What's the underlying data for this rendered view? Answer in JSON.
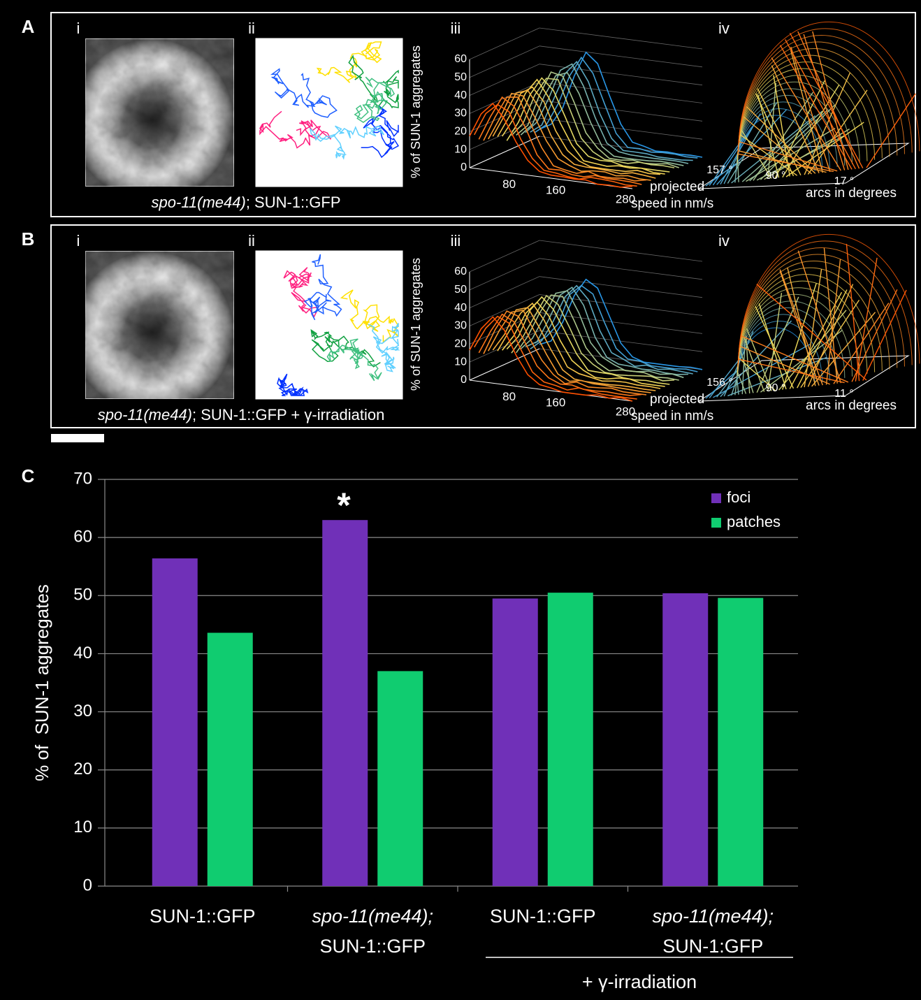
{
  "panels": [
    {
      "label": "A",
      "sublabels": [
        "i",
        "ii",
        "iii",
        "iv"
      ],
      "caption": {
        "italic": "spo-11(me44)",
        "rest": "; SUN-1::GFP"
      },
      "speed_plot": {
        "ylabel": "% of SUN-1 aggregates",
        "ylim": [
          0,
          60
        ],
        "yticks": [
          0,
          10,
          20,
          30,
          40,
          50,
          60
        ],
        "xlim": [
          0,
          280
        ],
        "xticks": [
          80,
          160,
          280
        ],
        "xlabel": [
          "projected",
          "speed in nm/s"
        ]
      },
      "arc_plot": {
        "ticks": [
          "157 °",
          "90 °",
          "17 °"
        ],
        "xlabel": "arcs in degrees"
      }
    },
    {
      "label": "B",
      "sublabels": [
        "i",
        "ii",
        "iii",
        "iv"
      ],
      "caption": {
        "italic": "spo-11(me44)",
        "rest": "; SUN-1::GFP + γ-irradiation"
      },
      "speed_plot": {
        "ylabel": "% of SUN-1 aggregates",
        "ylim": [
          0,
          60
        ],
        "yticks": [
          0,
          10,
          20,
          30,
          40,
          50,
          60
        ],
        "xlim": [
          0,
          280
        ],
        "xticks": [
          80,
          160,
          280
        ],
        "xlabel": [
          "projected",
          "speed in nm/s"
        ]
      },
      "arc_plot": {
        "ticks": [
          "156 °",
          "90 °",
          "11 °"
        ],
        "xlabel": "arcs in degrees"
      }
    }
  ],
  "chart_data": {
    "type": "bar",
    "label": "C",
    "ylabel": "% of  SUN-1 aggregates",
    "categories": [
      [
        "SUN-1::GFP"
      ],
      [
        "spo-11(me44);",
        "SUN-1::GFP"
      ],
      [
        "SUN-1::GFP"
      ],
      [
        "spo-11(me44);",
        "SUN-1:GFP"
      ]
    ],
    "series": [
      {
        "name": "foci",
        "color": "#7030b8",
        "values": [
          56.4,
          63,
          49.5,
          50.4
        ]
      },
      {
        "name": "patches",
        "color": "#10cc70",
        "values": [
          43.6,
          37,
          50.5,
          49.6
        ]
      }
    ],
    "ylim": [
      0,
      70
    ],
    "yticks": [
      0,
      10,
      20,
      30,
      40,
      50,
      60,
      70
    ],
    "grid": true,
    "legend": "top-right",
    "annotation": "*",
    "group_label": "+ γ-irradiation"
  }
}
